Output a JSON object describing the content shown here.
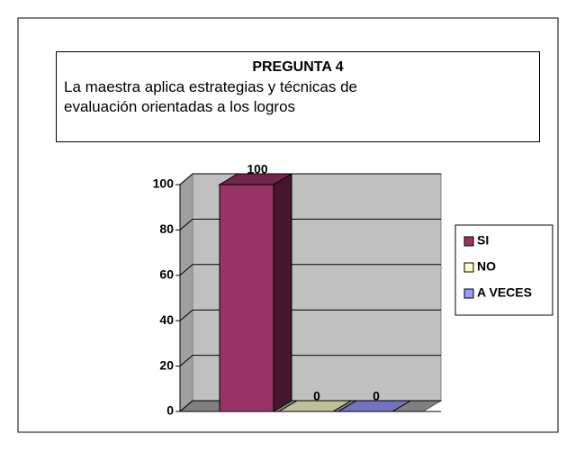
{
  "chart_data": {
    "type": "bar3d",
    "title": "PREGUNTA 4",
    "subtitle": "La maestra aplica estrategias y técnicas de evaluación orientadas a  los logros",
    "categories": [
      "SI",
      "NO",
      "A VECES"
    ],
    "series": [
      {
        "name": "SI",
        "color": "#993366"
      },
      {
        "name": "NO",
        "color": "#ffffcc"
      },
      {
        "name": "A VECES",
        "color": "#9999ff"
      }
    ],
    "values": [
      100,
      0,
      0
    ],
    "ylim": [
      0,
      100
    ],
    "yticks": [
      0,
      20,
      40,
      60,
      80,
      100
    ],
    "grid": true,
    "legend": "right"
  }
}
